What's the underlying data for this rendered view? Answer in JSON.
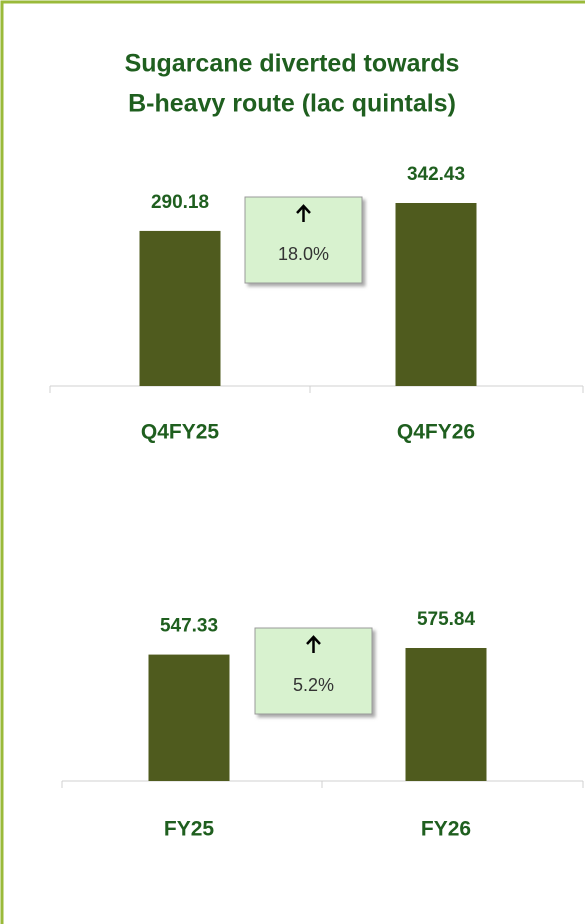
{
  "title": [
    "Sugarcane diverted towards",
    "B-heavy route (lac quintals)"
  ],
  "chart_data": [
    {
      "type": "bar",
      "categories": [
        "Q4FY25",
        "Q4FY26"
      ],
      "values": [
        290.18,
        342.43
      ],
      "color": "#4f5b1e",
      "annotation": "18.0%"
    },
    {
      "type": "bar",
      "categories": [
        "FY25",
        "FY26"
      ],
      "values": [
        547.33,
        575.84
      ],
      "color": "#4f5b1e",
      "annotation": "5.2%"
    }
  ]
}
